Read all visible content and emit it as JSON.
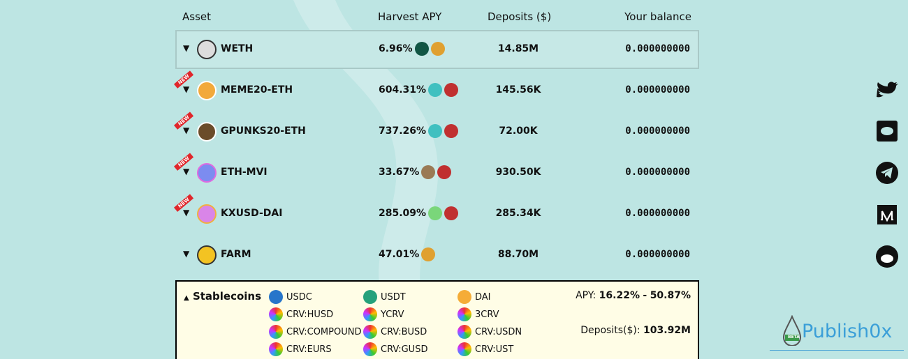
{
  "table": {
    "headers": [
      "Asset",
      "Harvest APY",
      "Deposits ($)",
      "Your balance"
    ],
    "rows": [
      {
        "asset": "WETH",
        "apy": "6.96%",
        "deposits": "14.85M",
        "balance": "0.000000000"
      },
      {
        "asset": "MEME20-ETH",
        "apy": "604.31%",
        "deposits": "145.56K",
        "balance": "0.000000000",
        "badge": "NEW"
      },
      {
        "asset": "GPUNKS20-ETH",
        "apy": "737.26%",
        "deposits": "72.00K",
        "balance": "0.000000000",
        "badge": "NEW"
      },
      {
        "asset": "ETH-MVI",
        "apy": "33.67%",
        "deposits": "930.50K",
        "balance": "0.000000000",
        "badge": "NEW"
      },
      {
        "asset": "KXUSD-DAI",
        "apy": "285.09%",
        "deposits": "285.34K",
        "balance": "0.000000000",
        "badge": "NEW"
      },
      {
        "asset": "FARM",
        "apy": "47.01%",
        "deposits": "88.70M",
        "balance": "0.000000000"
      }
    ]
  },
  "stablecoins": {
    "title": "Stablecoins",
    "tokens": [
      "USDC",
      "USDT",
      "DAI",
      "CRV:HUSD",
      "YCRV",
      "3CRV",
      "CRV:COMPOUND",
      "CRV:BUSD",
      "CRV:USDN",
      "CRV:EURS",
      "CRV:GUSD",
      "CRV:UST"
    ],
    "apy_label": "APY:",
    "apy_low": "16.22%",
    "apy_sep": "-",
    "apy_high": "50.87%",
    "deposits_label": "Deposits($):",
    "deposits": "103.92M"
  },
  "watermark": {
    "name": "Publish0x",
    "badge": "BETA"
  }
}
